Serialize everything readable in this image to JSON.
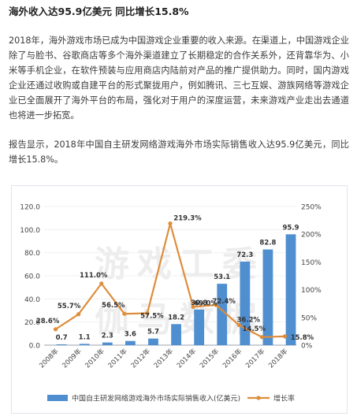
{
  "article": {
    "heading": "海外收入达95.9亿美元 同比增长15.8%",
    "paragraph1": "2018年，海外游戏市场已成为中国游戏企业重要的收入来源。在渠道上，中国游戏企业除了与脸书、谷歌商店等多个海外渠道建立了长期稳定的合作关系外，还背靠华为、小米等手机企业，在软件预装与应用商店内陆前对产品的推广提供助力。同时，国内游戏企业还通过收购或自建平台的形式聚拢用户，例如腾讯、三七互娱、游族网络等游戏企业已全面展开了海外平台的布局，强化对于用户的深度运营，未来游戏产业走出去通道也将进一步拓宽。",
    "paragraph2": "报告显示，2018年中国自主研发网络游戏海外市场实际销售收入达95.9亿美元，同比增长15.8%。"
  },
  "chart_data": {
    "type": "bar",
    "categories": [
      "2008年",
      "2009年",
      "2010年",
      "2011年",
      "2012年",
      "2013年",
      "2014年",
      "2015年",
      "2016年",
      "2017年",
      "2018年"
    ],
    "series": [
      {
        "name": "中国自主研发网络游戏海外市场实际销售收入(亿美元)",
        "type": "bar",
        "axis": "left",
        "values": [
          0.7,
          1.1,
          2.3,
          3.6,
          5.7,
          18.2,
          30.8,
          53.1,
          72.3,
          82.8,
          95.9
        ],
        "labels": [
          "0.7",
          "1.1",
          "2.3",
          "3.6",
          "5.7",
          "18.2",
          "30.8",
          "53.1",
          "72.3",
          "82.8",
          "95.9"
        ]
      },
      {
        "name": "增长率",
        "type": "line",
        "axis": "right",
        "values": [
          28.6,
          55.7,
          111.0,
          56.5,
          57.5,
          219.3,
          69.0,
          72.4,
          36.2,
          14.5,
          15.8
        ],
        "labels": [
          "28.6%",
          "55.7%",
          "111.0%",
          "56.5%",
          "57.5%",
          "219.3%",
          "69.0%",
          "72.4%",
          "36.2%",
          "14.5%",
          "15.8%"
        ]
      }
    ],
    "y_left": {
      "ticks": [
        "0.0",
        "20.0",
        "40.0",
        "60.0",
        "80.0",
        "100.0",
        "120.0"
      ],
      "min": 0,
      "max": 120
    },
    "y_right": {
      "ticks": [
        "0%",
        "50%",
        "100%",
        "150%",
        "200%",
        "250%"
      ],
      "min": 0,
      "max": 250
    },
    "legend_position": "bottom",
    "watermark": "游戏工委 伽马数据",
    "colors": {
      "bar": "#4f8fd0",
      "line": "#de8d3a",
      "frame": "#dfe4ea",
      "axis_text": "#444444"
    }
  }
}
